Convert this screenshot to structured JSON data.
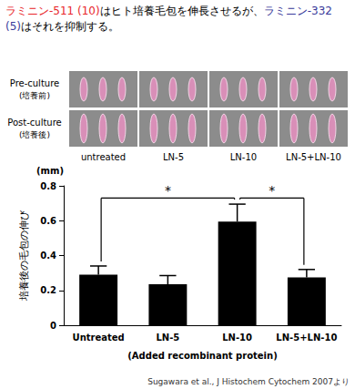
{
  "chart_data": {
    "type": "bar",
    "title": [
      {
        "text": "ラミニン-511 (10)",
        "color": "#e8262a"
      },
      {
        "text": "はヒト培養毛包を伸長させるが、"
      },
      {
        "text": "ラミニン-332 (5)",
        "color": "#3a3a9a"
      },
      {
        "text": "はそれを抑制する。"
      }
    ],
    "categories": [
      "Untreated",
      "LN-5",
      "LN-10",
      "LN-5+LN-10"
    ],
    "values": [
      0.29,
      0.235,
      0.595,
      0.275
    ],
    "errors": [
      0.05,
      0.05,
      0.1,
      0.045
    ],
    "color": "#000000",
    "ylim": [
      0,
      0.8
    ],
    "yticks": [
      0,
      0.2,
      0.4,
      0.6,
      0.8
    ],
    "grid": false,
    "y_label": "培養後の毛包の伸び",
    "unit": "(mm)",
    "x_label": "(Added recombinant protein)",
    "significance": [
      {
        "from": 0,
        "to": 2,
        "y": 0.73,
        "label": "*"
      },
      {
        "from": 2,
        "to": 3,
        "y": 0.73,
        "label": "*"
      }
    ],
    "source": "Sugawara et al., J Histochem Cytochem 2007より"
  },
  "photo_panel": {
    "rows": [
      {
        "label": "Pre-culture",
        "sublabel": "(培養前)"
      },
      {
        "label": "Post-culture",
        "sublabel": "(培養後)"
      }
    ],
    "columns": [
      "untreated",
      "LN-5",
      "LN-10",
      "LN-5+LN-10"
    ]
  }
}
